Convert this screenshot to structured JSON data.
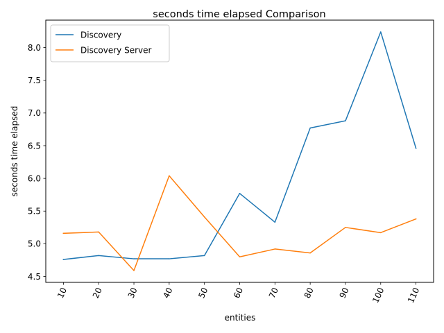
{
  "chart_data": {
    "type": "line",
    "title": "seconds time elapsed Comparison",
    "xlabel": "entities",
    "ylabel": "seconds time elapsed",
    "x": [
      10,
      20,
      30,
      40,
      50,
      60,
      70,
      80,
      90,
      100,
      110
    ],
    "x_tick_labels": [
      "10",
      "20",
      "30",
      "40",
      "50",
      "60",
      "70",
      "80",
      "90",
      "100",
      "110"
    ],
    "x_tick_rotation_deg": 65,
    "y_ticks": [
      4.5,
      5.0,
      5.5,
      6.0,
      6.5,
      7.0,
      7.5,
      8.0
    ],
    "y_tick_labels": [
      "4.5",
      "5.0",
      "5.5",
      "6.0",
      "6.5",
      "7.0",
      "7.5",
      "8.0"
    ],
    "ylim": [
      4.41,
      8.42
    ],
    "grid": false,
    "legend_position": "top-left",
    "series": [
      {
        "name": "Discovery",
        "color": "#1f77b4",
        "values": [
          4.76,
          4.82,
          4.77,
          4.77,
          4.82,
          5.77,
          5.33,
          6.77,
          6.88,
          8.24,
          6.46
        ]
      },
      {
        "name": "Discovery Server",
        "color": "#ff7f0e",
        "values": [
          5.16,
          5.18,
          4.59,
          6.04,
          5.41,
          4.8,
          4.92,
          4.86,
          5.25,
          5.17,
          5.38
        ]
      }
    ]
  }
}
